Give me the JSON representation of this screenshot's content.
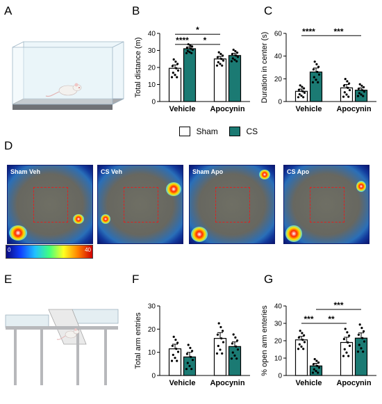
{
  "panel_letters": [
    "A",
    "B",
    "C",
    "D",
    "E",
    "F",
    "G"
  ],
  "legend": {
    "items": [
      {
        "label": "Sham",
        "color": "#ffffff"
      },
      {
        "label": "CS",
        "color": "#1b7a73"
      }
    ]
  },
  "heatmaps": [
    {
      "label": "Sham Veh"
    },
    {
      "label": "CS Veh"
    },
    {
      "label": "Sham Apo"
    },
    {
      "label": "CS Apo"
    }
  ],
  "colorbar": {
    "min": "0",
    "max": "40"
  },
  "chart_data": [
    {
      "id": "B",
      "type": "bar",
      "ylabel": "Total distance (m)",
      "ylim": [
        0,
        40
      ],
      "yticks": [
        0,
        10,
        20,
        30,
        40
      ],
      "categories": [
        "Vehicle",
        "Apocynin"
      ],
      "series": [
        {
          "name": "Sham",
          "values": [
            19.5,
            25
          ],
          "errors": [
            2,
            1.5
          ]
        },
        {
          "name": "CS",
          "values": [
            31,
            27
          ],
          "errors": [
            1,
            1.3
          ]
        }
      ],
      "significance": [
        {
          "text": "****",
          "from": [
            0,
            0
          ],
          "to": [
            0,
            1
          ],
          "y": 33.5
        },
        {
          "text": "*",
          "from": [
            0,
            1
          ],
          "to": [
            1,
            0
          ],
          "y": 33.5
        },
        {
          "text": "*",
          "from": [
            0,
            0
          ],
          "to": [
            1,
            0
          ],
          "y": 39.5
        }
      ]
    },
    {
      "id": "C",
      "type": "bar",
      "ylabel": "Duration in center (s)",
      "ylim": [
        0,
        60
      ],
      "yticks": [
        0,
        20,
        40,
        60
      ],
      "categories": [
        "Vehicle",
        "Apocynin"
      ],
      "series": [
        {
          "name": "Sham",
          "values": [
            9,
            12
          ],
          "errors": [
            2,
            3
          ]
        },
        {
          "name": "CS",
          "values": [
            26,
            10
          ],
          "errors": [
            3.5,
            2
          ]
        }
      ],
      "significance": [
        {
          "text": "****",
          "from": [
            0,
            0
          ],
          "to": [
            0,
            1
          ],
          "y": 58
        },
        {
          "text": "***",
          "from": [
            0,
            1
          ],
          "to": [
            1,
            1
          ],
          "y": 58
        }
      ]
    },
    {
      "id": "F",
      "type": "bar",
      "ylabel": "Total arm entries",
      "ylim": [
        0,
        30
      ],
      "yticks": [
        0,
        10,
        20,
        30
      ],
      "categories": [
        "Vehicle",
        "Apocynin"
      ],
      "series": [
        {
          "name": "Sham",
          "values": [
            11.5,
            16
          ],
          "errors": [
            2,
            2.5
          ]
        },
        {
          "name": "CS",
          "values": [
            8,
            12.5
          ],
          "errors": [
            2,
            2
          ]
        }
      ],
      "significance": []
    },
    {
      "id": "G",
      "type": "bar",
      "ylabel": "% open arm enteries",
      "ylim": [
        0,
        40
      ],
      "yticks": [
        0,
        10,
        20,
        30,
        40
      ],
      "categories": [
        "Vehicle",
        "Apocynin"
      ],
      "series": [
        {
          "name": "Sham",
          "values": [
            20.5,
            19
          ],
          "errors": [
            2,
            3
          ]
        },
        {
          "name": "CS",
          "values": [
            5.5,
            21.5
          ],
          "errors": [
            1.5,
            3
          ]
        }
      ],
      "significance": [
        {
          "text": "***",
          "from": [
            0,
            0
          ],
          "to": [
            0,
            1
          ],
          "y": 30
        },
        {
          "text": "**",
          "from": [
            0,
            1
          ],
          "to": [
            1,
            0
          ],
          "y": 30
        },
        {
          "text": "***",
          "from": [
            0,
            1
          ],
          "to": [
            1,
            1
          ],
          "y": 38
        }
      ]
    }
  ]
}
